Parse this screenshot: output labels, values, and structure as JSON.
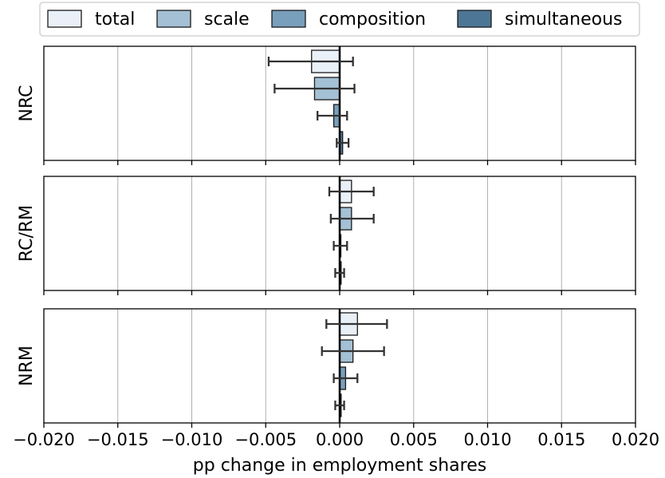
{
  "chart_data": {
    "type": "bar",
    "orientation": "horizontal",
    "xlabel": "pp change in employment shares",
    "xlim": [
      -0.02,
      0.02
    ],
    "xticks": [
      -0.02,
      -0.015,
      -0.01,
      -0.005,
      0.0,
      0.005,
      0.01,
      0.015,
      0.02
    ],
    "xtick_labels": [
      "−0.020",
      "−0.015",
      "−0.010",
      "−0.005",
      "0.000",
      "0.005",
      "0.010",
      "0.015",
      "0.020"
    ],
    "grid": "x-axis vertical gridlines",
    "legend": {
      "placement": "top",
      "entries": [
        {
          "name": "total",
          "color": "#eaf0f8"
        },
        {
          "name": "scale",
          "color": "#a4c0d4"
        },
        {
          "name": "composition",
          "color": "#789fbb"
        },
        {
          "name": "simultaneous",
          "color": "#4d7696"
        }
      ]
    },
    "series_names": [
      "total",
      "scale",
      "composition",
      "simultaneous"
    ],
    "panels": [
      {
        "ylabel": "NRC",
        "bars": [
          {
            "series": "total",
            "value": -0.0019,
            "err_low": -0.0048,
            "err_high": 0.0009
          },
          {
            "series": "scale",
            "value": -0.0017,
            "err_low": -0.0044,
            "err_high": 0.001
          },
          {
            "series": "composition",
            "value": -0.0004,
            "err_low": -0.0015,
            "err_high": 0.0005
          },
          {
            "series": "simultaneous",
            "value": 0.0002,
            "err_low": -0.0002,
            "err_high": 0.0006
          }
        ]
      },
      {
        "ylabel": "RC/RM",
        "bars": [
          {
            "series": "total",
            "value": 0.0008,
            "err_low": -0.0007,
            "err_high": 0.0023
          },
          {
            "series": "scale",
            "value": 0.0008,
            "err_low": -0.0006,
            "err_high": 0.0023
          },
          {
            "series": "composition",
            "value": 0.0,
            "err_low": -0.0004,
            "err_high": 0.0005
          },
          {
            "series": "simultaneous",
            "value": 0.0001,
            "err_low": -0.0003,
            "err_high": 0.0003
          }
        ]
      },
      {
        "ylabel": "NRM",
        "bars": [
          {
            "series": "total",
            "value": 0.0012,
            "err_low": -0.0009,
            "err_high": 0.0032
          },
          {
            "series": "scale",
            "value": 0.0009,
            "err_low": -0.0012,
            "err_high": 0.003
          },
          {
            "series": "composition",
            "value": 0.0004,
            "err_low": -0.0004,
            "err_high": 0.0012
          },
          {
            "series": "simultaneous",
            "value": 0.0001,
            "err_low": -0.0003,
            "err_high": 0.0003
          }
        ]
      }
    ]
  }
}
